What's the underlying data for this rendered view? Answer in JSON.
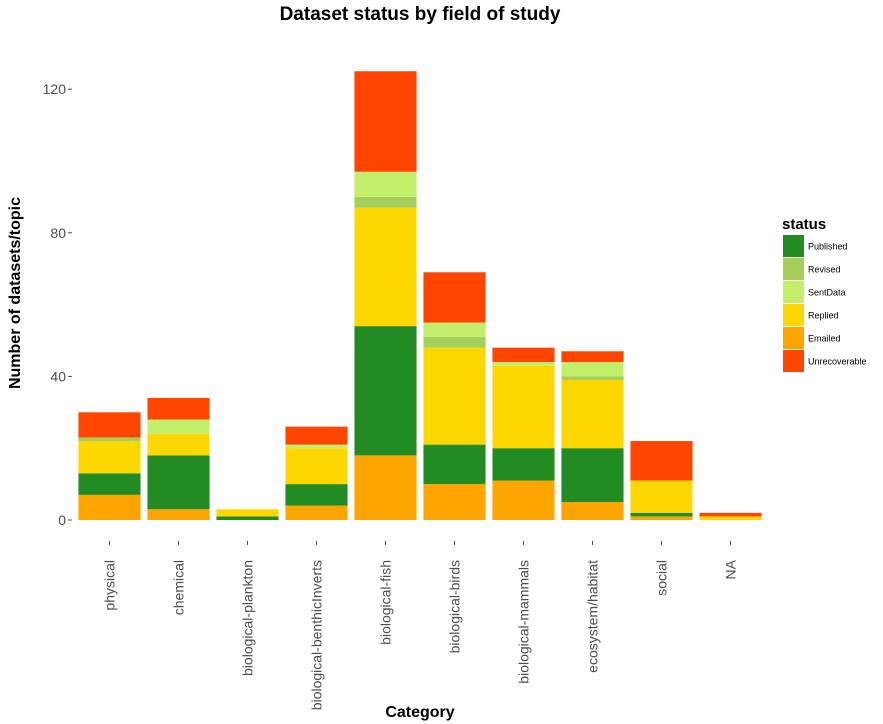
{
  "chart_data": {
    "type": "bar",
    "stacked": true,
    "title": "Dataset status by field of study",
    "xlabel": "Category",
    "ylabel": "Number of datasets/topic",
    "ylim": [
      -4,
      130
    ],
    "yticks": [
      0,
      40,
      80,
      120
    ],
    "grid": false,
    "legend": {
      "title": "status",
      "placement": "right"
    },
    "categories": [
      "physical",
      "chemical",
      "biological-plankton",
      "biological-benthicInverts",
      "biological-fish",
      "biological-birds",
      "biological-mammals",
      "ecosystem/habitat",
      "social",
      "NA"
    ],
    "series": [
      {
        "name": "Emailed",
        "color": "#FFA500",
        "values": [
          7,
          3,
          0,
          4,
          18,
          10,
          11,
          5,
          1,
          0
        ]
      },
      {
        "name": "Published",
        "color": "#228B22",
        "values": [
          6,
          15,
          1,
          6,
          36,
          11,
          9,
          15,
          1,
          0
        ]
      },
      {
        "name": "Replied",
        "color": "#FFD700",
        "values": [
          9,
          6,
          2,
          10,
          33,
          27,
          23,
          19,
          9,
          1
        ]
      },
      {
        "name": "Revised",
        "color": "#A6CE5B",
        "values": [
          1,
          0,
          0,
          0,
          3,
          3,
          0,
          1,
          0,
          0
        ]
      },
      {
        "name": "SentData",
        "color": "#C3EE6A",
        "values": [
          0,
          4,
          0,
          1,
          7,
          4,
          1,
          4,
          0,
          0
        ]
      },
      {
        "name": "Unrecoverable",
        "color": "#FF4500",
        "values": [
          7,
          6,
          0,
          5,
          28,
          14,
          4,
          3,
          11,
          1
        ]
      }
    ],
    "legend_order": [
      "Published",
      "Revised",
      "SentData",
      "Replied",
      "Emailed",
      "Unrecoverable"
    ]
  }
}
